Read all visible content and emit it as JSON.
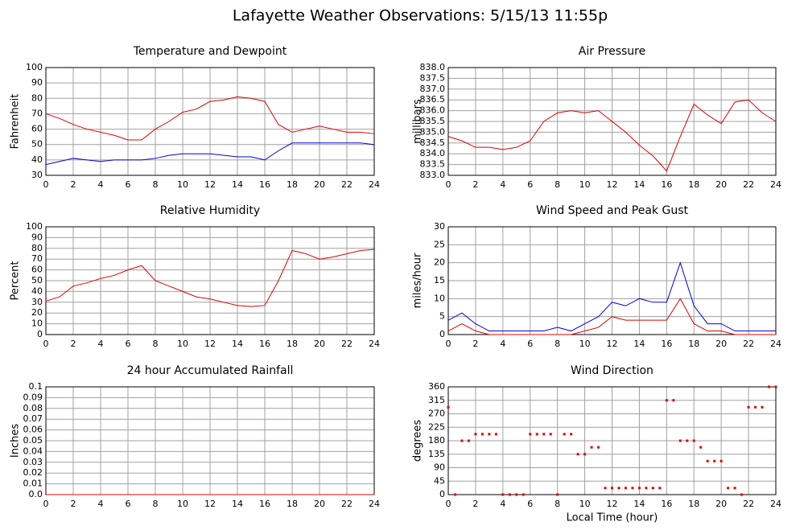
{
  "title": "Lafayette Weather Observations: 5/15/13 11:55p",
  "chart_data": [
    {
      "type": "line",
      "title": "Temperature and Dewpoint",
      "ylabel": "Fahrenheit",
      "x": [
        0,
        1,
        2,
        3,
        4,
        5,
        6,
        7,
        8,
        9,
        10,
        11,
        12,
        13,
        14,
        15,
        16,
        17,
        18,
        19,
        20,
        21,
        22,
        23,
        24
      ],
      "series": [
        {
          "color": "#e00000",
          "values": [
            70,
            67,
            63,
            60,
            58,
            56,
            53,
            53,
            60,
            65,
            71,
            73,
            78,
            79,
            81,
            80,
            78,
            63,
            58,
            60,
            62,
            60,
            58,
            58,
            57
          ]
        },
        {
          "color": "#0000e0",
          "values": [
            37,
            39,
            41,
            40,
            39,
            40,
            40,
            40,
            41,
            43,
            44,
            44,
            44,
            43,
            42,
            42,
            40,
            46,
            51,
            51,
            51,
            51,
            51,
            51,
            50
          ]
        }
      ],
      "xlim": [
        0,
        24
      ],
      "xticks": [
        0,
        2,
        4,
        6,
        8,
        10,
        12,
        14,
        16,
        18,
        20,
        22,
        24
      ],
      "ylim": [
        30,
        100
      ],
      "yticks": [
        30,
        40,
        50,
        60,
        70,
        80,
        90,
        100
      ],
      "grid": true
    },
    {
      "type": "line",
      "title": "Air Pressure",
      "ylabel": "millibars",
      "x": [
        0,
        1,
        2,
        3,
        4,
        5,
        6,
        7,
        8,
        9,
        10,
        11,
        12,
        13,
        14,
        15,
        16,
        17,
        18,
        19,
        20,
        21,
        22,
        23,
        24
      ],
      "series": [
        {
          "color": "#e00000",
          "values": [
            834.8,
            834.6,
            834.3,
            834.3,
            834.2,
            834.3,
            834.6,
            835.5,
            835.9,
            836.0,
            835.9,
            836.0,
            835.5,
            835.0,
            834.4,
            833.9,
            833.2,
            834.8,
            836.3,
            835.8,
            835.4,
            836.4,
            836.5,
            835.9,
            835.5
          ]
        }
      ],
      "xlim": [
        0,
        24
      ],
      "xticks": [
        0,
        2,
        4,
        6,
        8,
        10,
        12,
        14,
        16,
        18,
        20,
        22,
        24
      ],
      "ylim": [
        833,
        838
      ],
      "yticks": [
        {
          "value": 833,
          "label": "833.0"
        },
        {
          "value": 833.5,
          "label": "833.5"
        },
        {
          "value": 834,
          "label": "834.0"
        },
        {
          "value": 834.5,
          "label": "834.5"
        },
        {
          "value": 835,
          "label": "835.0"
        },
        {
          "value": 835.5,
          "label": "835.5"
        },
        {
          "value": 836,
          "label": "836.0"
        },
        {
          "value": 836.5,
          "label": "836.5"
        },
        {
          "value": 837,
          "label": "837.0"
        },
        {
          "value": 837.5,
          "label": "837.5"
        },
        {
          "value": 838,
          "label": "838.0"
        }
      ],
      "grid": true
    },
    {
      "type": "line",
      "title": "Relative Humidity",
      "ylabel": "Percent",
      "x": [
        0,
        1,
        2,
        3,
        4,
        5,
        6,
        7,
        8,
        9,
        10,
        11,
        12,
        13,
        14,
        15,
        16,
        17,
        18,
        19,
        20,
        21,
        22,
        23,
        24
      ],
      "series": [
        {
          "color": "#e00000",
          "values": [
            31,
            35,
            45,
            48,
            52,
            55,
            60,
            64,
            50,
            45,
            40,
            35,
            33,
            30,
            27,
            26,
            27,
            50,
            78,
            75,
            70,
            72,
            75,
            78,
            79
          ]
        }
      ],
      "xlim": [
        0,
        24
      ],
      "xticks": [
        0,
        2,
        4,
        6,
        8,
        10,
        12,
        14,
        16,
        18,
        20,
        22,
        24
      ],
      "ylim": [
        0,
        100
      ],
      "yticks": [
        0,
        10,
        20,
        30,
        40,
        50,
        60,
        70,
        80,
        90,
        100
      ],
      "grid": true
    },
    {
      "type": "line",
      "title": "Wind Speed and Peak Gust",
      "ylabel": "miles/hour",
      "x": [
        0,
        1,
        2,
        3,
        4,
        5,
        6,
        7,
        8,
        9,
        10,
        11,
        12,
        13,
        14,
        15,
        16,
        17,
        18,
        19,
        20,
        21,
        22,
        23,
        24
      ],
      "series": [
        {
          "color": "#0000e0",
          "values": [
            4,
            6,
            3,
            1,
            1,
            1,
            1,
            1,
            2,
            1,
            3,
            5,
            9,
            8,
            10,
            9,
            9,
            20,
            8,
            3,
            3,
            1,
            1,
            1,
            1
          ]
        },
        {
          "color": "#e00000",
          "values": [
            1,
            3,
            1,
            0,
            0,
            0,
            0,
            0,
            0,
            0,
            1,
            2,
            5,
            4,
            4,
            4,
            4,
            10,
            3,
            1,
            1,
            0,
            0,
            0,
            0
          ]
        }
      ],
      "xlim": [
        0,
        24
      ],
      "xticks": [
        0,
        2,
        4,
        6,
        8,
        10,
        12,
        14,
        16,
        18,
        20,
        22,
        24
      ],
      "ylim": [
        0,
        30
      ],
      "yticks": [
        0,
        5,
        10,
        15,
        20,
        25,
        30
      ],
      "grid": true
    },
    {
      "type": "line",
      "title": "24 hour Accumulated Rainfall",
      "ylabel": "Inches",
      "x": [
        0,
        1,
        2,
        3,
        4,
        5,
        6,
        7,
        8,
        9,
        10,
        11,
        12,
        13,
        14,
        15,
        16,
        17,
        18,
        19,
        20,
        21,
        22,
        23,
        24
      ],
      "series": [
        {
          "color": "#e00000",
          "values": [
            0,
            0,
            0,
            0,
            0,
            0,
            0,
            0,
            0,
            0,
            0,
            0,
            0,
            0,
            0,
            0,
            0,
            0,
            0,
            0,
            0,
            0,
            0,
            0,
            0
          ]
        }
      ],
      "xlim": [
        0,
        24
      ],
      "xticks": [
        0,
        2,
        4,
        6,
        8,
        10,
        12,
        14,
        16,
        18,
        20,
        22,
        24
      ],
      "ylim": [
        0,
        0.1
      ],
      "yticks": [
        {
          "value": 0,
          "label": "0.0"
        },
        0.01,
        0.02,
        0.03,
        0.04,
        0.05,
        0.06,
        0.07,
        0.08,
        0.09,
        0.1
      ],
      "grid": true
    },
    {
      "type": "scatter",
      "title": "Wind Direction",
      "ylabel": "degrees",
      "xlabel": "Local Time (hour)",
      "x": [
        0,
        0.5,
        1,
        1.5,
        2,
        2.5,
        3,
        3.5,
        4,
        4.5,
        5,
        5.5,
        6,
        6.5,
        7,
        7.5,
        8,
        8.5,
        9,
        9.5,
        10,
        10.5,
        11,
        11.5,
        12,
        12.5,
        13,
        13.5,
        14,
        14.5,
        15,
        15.5,
        16,
        16.5,
        17,
        17.5,
        18,
        18.5,
        19,
        19.5,
        20,
        20.5,
        21,
        21.5,
        22,
        22.5,
        23,
        23.5,
        24
      ],
      "series": [
        {
          "color": "#e00000",
          "values": [
            292,
            0,
            180,
            180,
            202,
            202,
            202,
            202,
            0,
            0,
            0,
            0,
            202,
            202,
            202,
            202,
            0,
            202,
            202,
            135,
            135,
            158,
            158,
            22,
            22,
            22,
            22,
            22,
            22,
            22,
            22,
            22,
            315,
            315,
            180,
            180,
            180,
            158,
            112,
            112,
            112,
            22,
            22,
            0,
            292,
            292,
            292,
            360,
            360
          ]
        }
      ],
      "xlim": [
        0,
        24
      ],
      "xticks": [
        0,
        2,
        4,
        6,
        8,
        10,
        12,
        14,
        16,
        18,
        20,
        22,
        24
      ],
      "ylim": [
        0,
        360
      ],
      "yticks": [
        0,
        45,
        90,
        135,
        180,
        225,
        270,
        315,
        360
      ],
      "grid": true
    }
  ]
}
